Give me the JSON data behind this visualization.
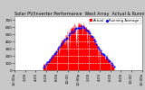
{
  "title": "Solar PV/Inverter Performance  West Array  Actual & Running Average Power Output",
  "xlabel_items": [
    "12:00a",
    "2:00",
    "4:00",
    "6:00",
    "8:00",
    "10:00",
    "12:00p",
    "2:00",
    "4:00",
    "6:00",
    "8:00",
    "10:00",
    "12:00a"
  ],
  "ylabel_ticks": [
    "0",
    "100",
    "200",
    "300",
    "400",
    "500",
    "600",
    "700"
  ],
  "ylim": [
    0,
    750
  ],
  "xlim": [
    0,
    288
  ],
  "bg_color": "#c8c8c8",
  "plot_bg": "#ffffff",
  "grid_color": "#ffffff",
  "bar_color": "#ff0000",
  "avg_color": "#0000ff",
  "legend_actual": "Actual",
  "legend_avg": "Running Average",
  "title_color": "#000000",
  "title_fontsize": 3.5,
  "tick_fontsize": 3.0,
  "fig_width": 1.6,
  "fig_height": 1.0,
  "dpi": 100
}
